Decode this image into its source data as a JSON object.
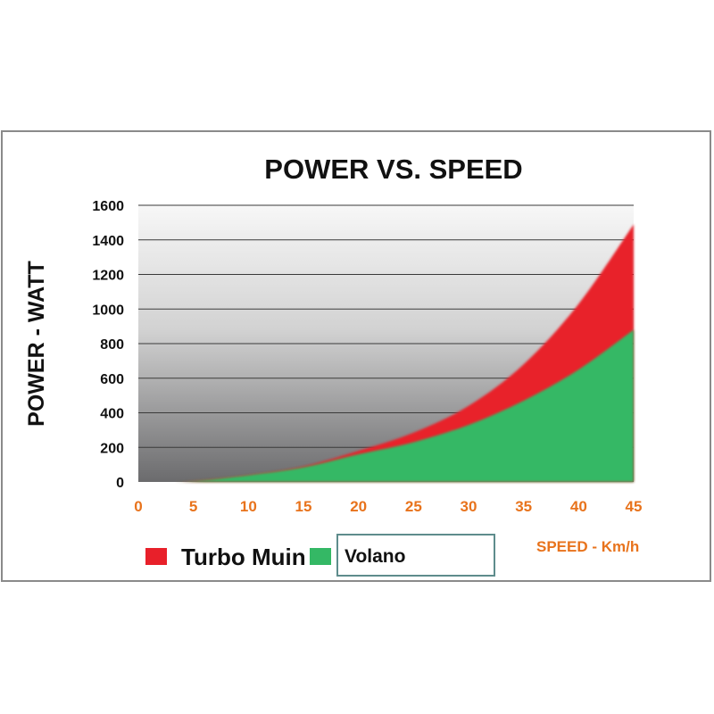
{
  "chart_data": {
    "type": "area",
    "title": "POWER VS. SPEED",
    "ylabel": "POWER - WATT",
    "xlabel": "SPEED - Km/h",
    "x_ticks": [
      0,
      5,
      10,
      15,
      20,
      25,
      30,
      35,
      40,
      45
    ],
    "y_ticks": [
      0,
      200,
      400,
      600,
      800,
      1000,
      1200,
      1400,
      1600
    ],
    "xlim": [
      0,
      45
    ],
    "ylim": [
      0,
      1600
    ],
    "grid": true,
    "legend": "bottom-left",
    "series": [
      {
        "name": "Turbo Muin",
        "color": "#e8202a",
        "x": [
          3,
          5,
          10,
          15,
          20,
          25,
          30,
          35,
          40,
          45
        ],
        "y": [
          0,
          5,
          40,
          90,
          180,
          285,
          440,
          680,
          1030,
          1490
        ]
      },
      {
        "name": "Volano",
        "color": "#34b865",
        "x": [
          3,
          5,
          10,
          15,
          20,
          25,
          30,
          35,
          40,
          45
        ],
        "y": [
          0,
          5,
          40,
          85,
          160,
          230,
          330,
          470,
          650,
          880
        ]
      }
    ]
  },
  "colors": {
    "axis_text": "#111111",
    "x_tick_color": "#e8731c",
    "x_label_color": "#e8731c"
  }
}
